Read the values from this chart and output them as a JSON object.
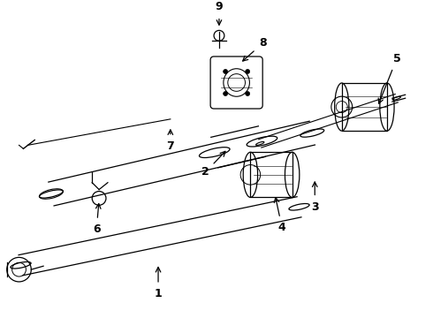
{
  "background_color": "#ffffff",
  "line_color": "#000000",
  "figure_width": 4.9,
  "figure_height": 3.6,
  "dpi": 100
}
